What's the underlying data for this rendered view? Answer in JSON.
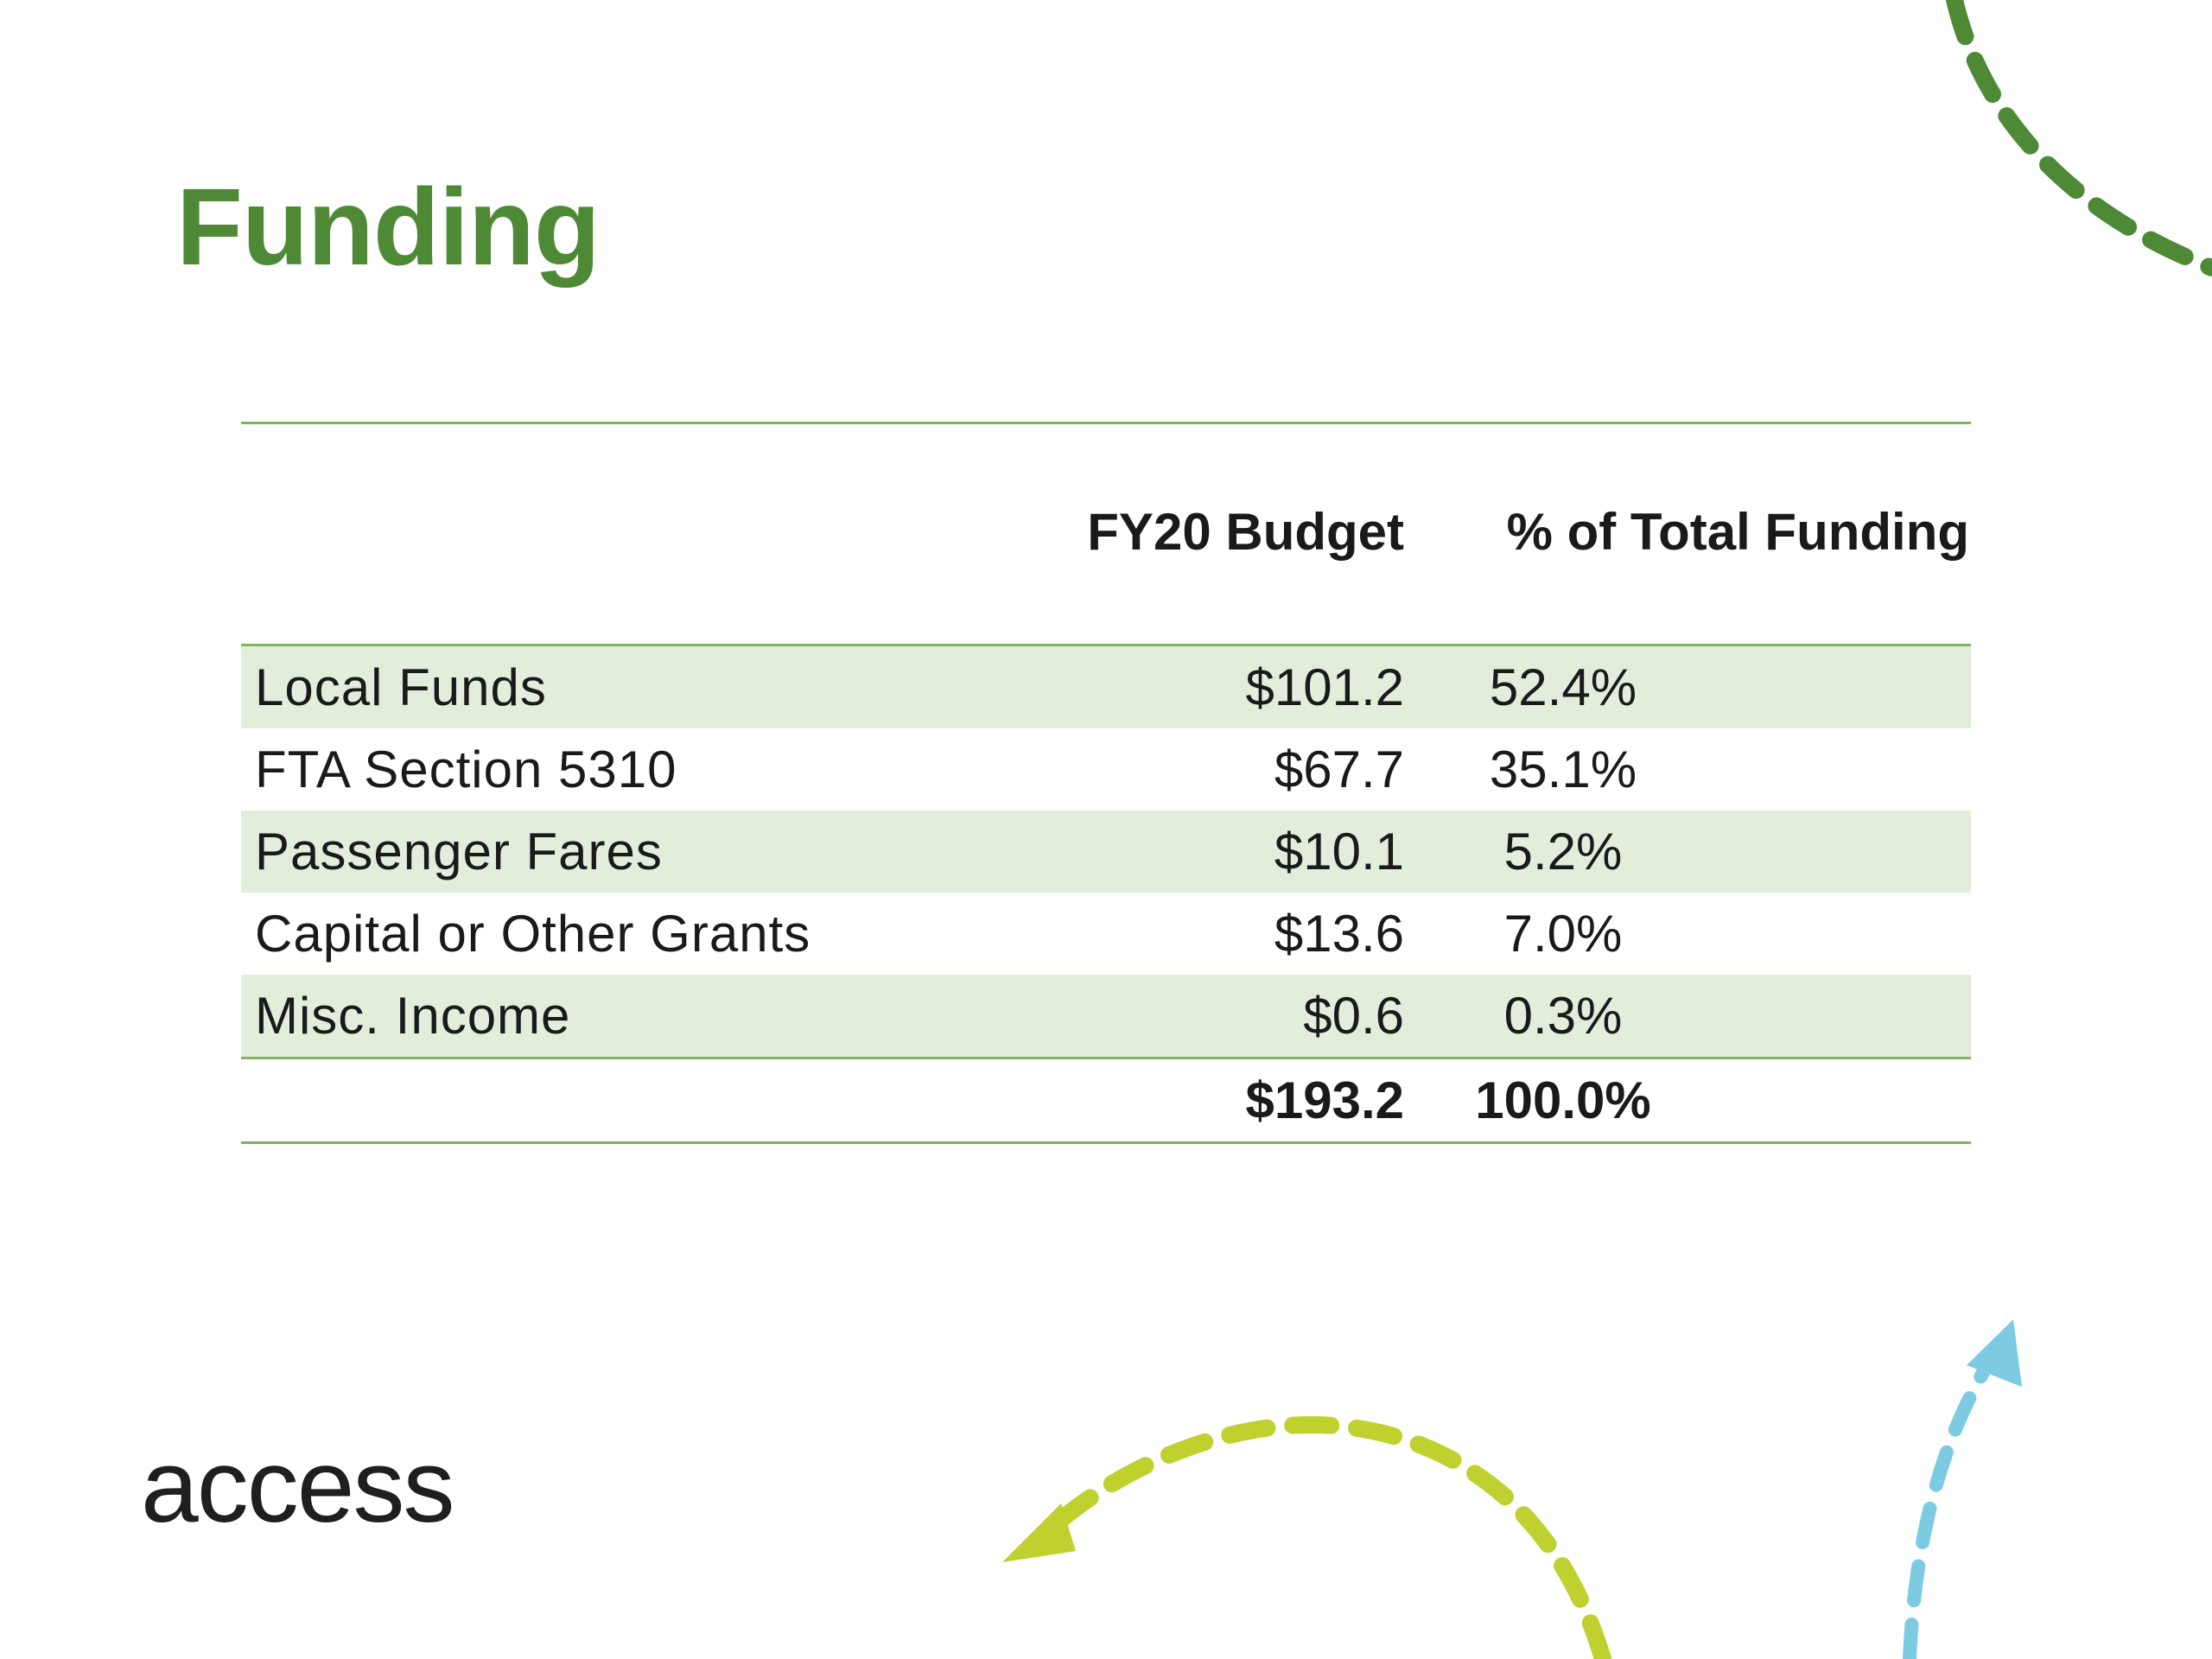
{
  "slide": {
    "title": "Funding",
    "logo_text": "access"
  },
  "table": {
    "headers": {
      "budget": "FY20 Budget",
      "pct": "% of Total Funding"
    },
    "rows": [
      {
        "label": "Local Funds",
        "budget": "$101.2",
        "pct": "52.4%"
      },
      {
        "label": "FTA Section 5310",
        "budget": "$67.7",
        "pct": "35.1%"
      },
      {
        "label": "Passenger Fares",
        "budget": "$10.1",
        "pct": "5.2%"
      },
      {
        "label": "Capital or Other Grants",
        "budget": "$13.6",
        "pct": "7.0%"
      },
      {
        "label": "Misc. Income",
        "budget": "$0.6",
        "pct": "0.3%"
      }
    ],
    "total": {
      "label": "",
      "budget": "$193.2",
      "pct": "100.0%"
    }
  },
  "colors": {
    "title_green": "#4e8a35",
    "rule_green": "#7fb35c",
    "row_shade": "#e2eedb",
    "arrow_green_dark": "#4e8a35",
    "arrow_lime": "#bfd12e",
    "arrow_blue": "#7ccbe3"
  }
}
